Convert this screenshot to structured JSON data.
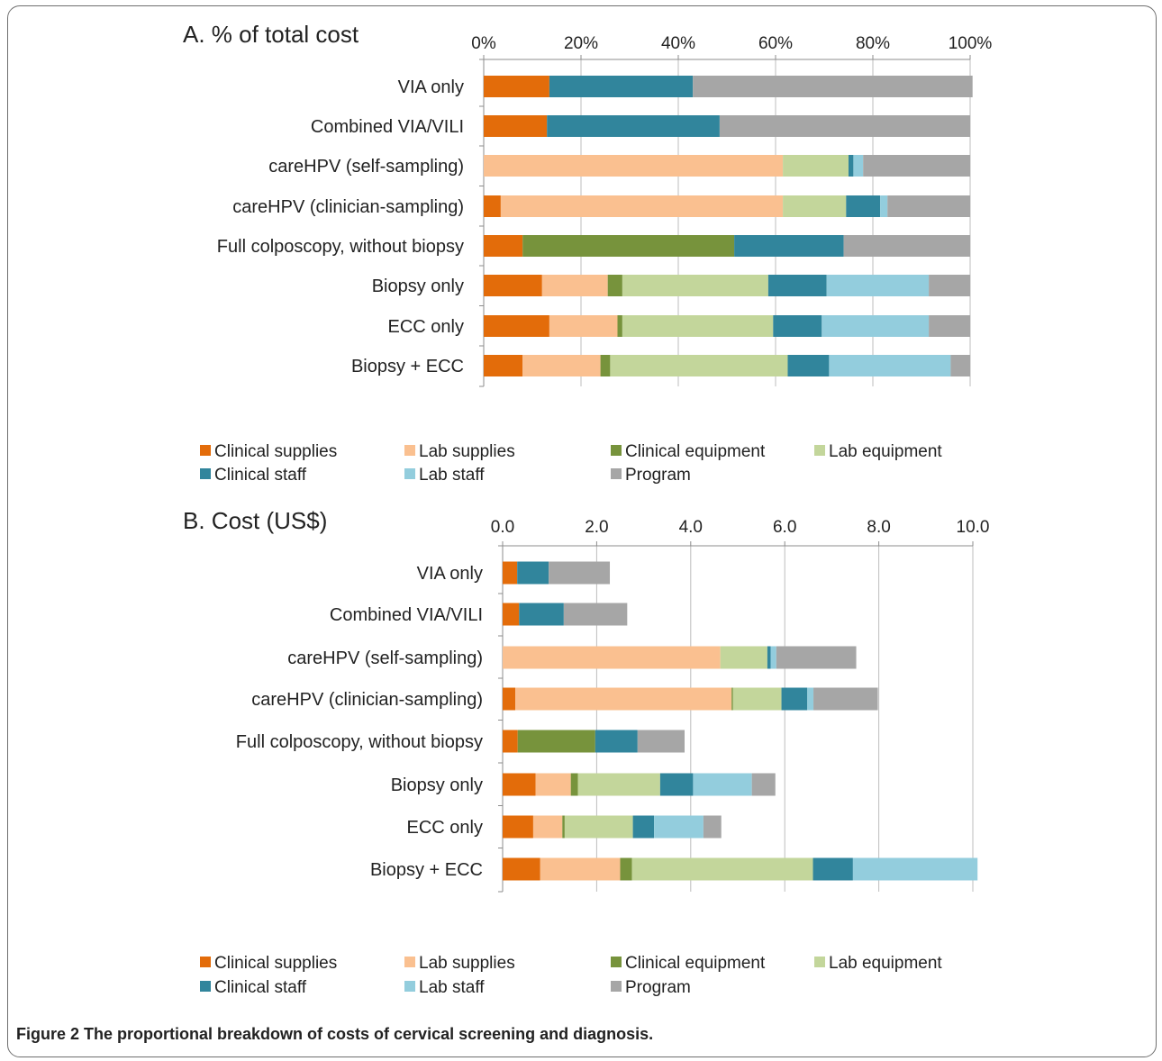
{
  "colors": {
    "Clinical supplies": "#e36c0a",
    "Lab supplies": "#fac090",
    "Clinical equipment": "#77933c",
    "Lab equipment": "#c3d69b",
    "Clinical staff": "#31859c",
    "Lab staff": "#93cddd",
    "Program": "#a6a6a6"
  },
  "caption": "Figure 2 The proportional breakdown of costs of cervical screening and diagnosis.",
  "chart_data": [
    {
      "type": "bar",
      "orientation": "horizontal",
      "stacked": true,
      "title": "A. % of total cost",
      "xlim": [
        0,
        100
      ],
      "x_ticks": [
        "0%",
        "20%",
        "40%",
        "60%",
        "80%",
        "100%"
      ],
      "x_tick_values": [
        0,
        20,
        40,
        60,
        80,
        100
      ],
      "grid": true,
      "legend_position": "bottom",
      "categories": [
        "VIA only",
        "Combined VIA/VILI",
        "careHPV (self-sampling)",
        "careHPV (clinician-sampling)",
        "Full colposcopy, without biopsy",
        "Biopsy only",
        "ECC only",
        "Biopsy + ECC"
      ],
      "series": [
        {
          "name": "Clinical supplies",
          "values": [
            13.5,
            13,
            0,
            3.5,
            8,
            12,
            13.5,
            8
          ]
        },
        {
          "name": "Lab supplies",
          "values": [
            0,
            0,
            61.5,
            58,
            0,
            13.5,
            14,
            16
          ]
        },
        {
          "name": "Clinical equipment",
          "values": [
            0,
            0,
            0,
            0,
            43.5,
            3,
            1,
            2
          ]
        },
        {
          "name": "Lab equipment",
          "values": [
            0,
            0,
            13.5,
            13,
            0,
            30,
            31,
            36.5
          ]
        },
        {
          "name": "Clinical staff",
          "values": [
            29.5,
            35.5,
            1,
            7,
            22.5,
            12,
            10,
            8.5
          ]
        },
        {
          "name": "Lab staff",
          "values": [
            0,
            0,
            2,
            1.5,
            0,
            21,
            22,
            25
          ]
        },
        {
          "name": "Program",
          "values": [
            57.5,
            51.5,
            22,
            17,
            26,
            8.5,
            8.5,
            4
          ]
        }
      ]
    },
    {
      "type": "bar",
      "orientation": "horizontal",
      "stacked": true,
      "title": "B. Cost (US$)",
      "xlim": [
        0,
        10
      ],
      "x_ticks": [
        "0.0",
        "2.0",
        "4.0",
        "6.0",
        "8.0",
        "10.0"
      ],
      "x_tick_values": [
        0,
        2,
        4,
        6,
        8,
        10
      ],
      "grid": true,
      "legend_position": "bottom",
      "categories": [
        "VIA only",
        "Combined VIA/VILI",
        "careHPV (self-sampling)",
        "careHPV (clinician-sampling)",
        "Full colposcopy, without biopsy",
        "Biopsy only",
        "ECC only",
        "Biopsy + ECC"
      ],
      "series": [
        {
          "name": "Clinical supplies",
          "values": [
            0.31,
            0.35,
            0,
            0.27,
            0.32,
            0.7,
            0.65,
            0.8
          ]
        },
        {
          "name": "Lab supplies",
          "values": [
            0,
            0,
            4.63,
            4.6,
            0,
            0.75,
            0.62,
            1.7
          ]
        },
        {
          "name": "Clinical equipment",
          "values": [
            0,
            0,
            0,
            0.03,
            1.65,
            0.15,
            0.05,
            0.25
          ]
        },
        {
          "name": "Lab equipment",
          "values": [
            0,
            0,
            1.0,
            1.03,
            0,
            1.75,
            1.45,
            3.85
          ]
        },
        {
          "name": "Clinical staff",
          "values": [
            0.67,
            0.95,
            0.07,
            0.55,
            0.9,
            0.7,
            0.45,
            0.85
          ]
        },
        {
          "name": "Lab staff",
          "values": [
            0,
            0,
            0.12,
            0.13,
            0,
            1.25,
            1.05,
            2.65
          ]
        },
        {
          "name": "Program",
          "values": [
            1.3,
            1.35,
            1.7,
            1.37,
            1.0,
            0.5,
            0.38,
            0
          ]
        }
      ]
    }
  ]
}
